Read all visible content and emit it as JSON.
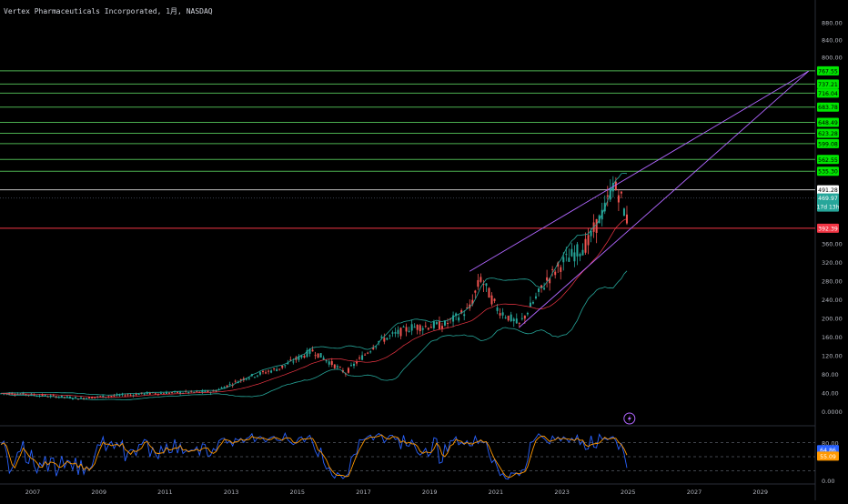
{
  "header": {
    "title": "Vertex Pharmaceuticals Incorporated",
    "interval": "1月",
    "exchange": "NASDAQ"
  },
  "colors": {
    "background": "#000000",
    "candle_up": "#26a69a",
    "candle_down": "#ef5350",
    "target_line": "#4caf50",
    "target_label_bg": "#00e600",
    "support_line": "#f23645",
    "resistance_line": "#c0c0c0",
    "current_price_bg": "#26a69a",
    "channel": "#b066ff",
    "bollinger": "#26a69a",
    "basis": "#f23645",
    "stoch_k": "#2962ff",
    "stoch_d": "#ff9800"
  },
  "icons": {
    "event_marker": "lightning-icon"
  },
  "chart_data": [
    {
      "type": "candlestick",
      "symbol": "Vertex Pharmaceuticals Incorporated",
      "interval": "1月",
      "exchange": "NASDAQ",
      "x_axis": {
        "type": "time",
        "tick_labels": [
          "2007",
          "2009",
          "2011",
          "2013",
          "2015",
          "2017",
          "2019",
          "2021",
          "2023",
          "2025",
          "2027",
          "2029"
        ]
      },
      "y_axis": {
        "scale": "linear",
        "ylim": [
          0,
          900
        ],
        "tick_labels": [
          "880.00",
          "840.00",
          "800.00",
          "360.00",
          "320.00",
          "280.00",
          "240.00",
          "200.00",
          "160.00",
          "120.00",
          "80.00",
          "40.00",
          "0.0000"
        ]
      },
      "trend_path": [
        {
          "date": "2006-06",
          "price": 38
        },
        {
          "date": "2008-06",
          "price": 28
        },
        {
          "date": "2010-06",
          "price": 38
        },
        {
          "date": "2012-06",
          "price": 42
        },
        {
          "date": "2013-06",
          "price": 72
        },
        {
          "date": "2014-06",
          "price": 92
        },
        {
          "date": "2015-06",
          "price": 130
        },
        {
          "date": "2016-06",
          "price": 82
        },
        {
          "date": "2017-06",
          "price": 150
        },
        {
          "date": "2018-06",
          "price": 180
        },
        {
          "date": "2019-06",
          "price": 185
        },
        {
          "date": "2020-03",
          "price": 220
        },
        {
          "date": "2020-07",
          "price": 285
        },
        {
          "date": "2021-01",
          "price": 220
        },
        {
          "date": "2021-09",
          "price": 185
        },
        {
          "date": "2022-07",
          "price": 280
        },
        {
          "date": "2023-01",
          "price": 320
        },
        {
          "date": "2023-10",
          "price": 360
        },
        {
          "date": "2024-04",
          "price": 440
        },
        {
          "date": "2024-07",
          "price": 505
        },
        {
          "date": "2024-10",
          "price": 470
        },
        {
          "date": "2024-12",
          "price": 410
        },
        {
          "date": "2025-01",
          "price": 470
        }
      ],
      "horizontal_levels": [
        {
          "kind": "target",
          "value": 767.55,
          "label": "767.55"
        },
        {
          "kind": "target",
          "value": 737.21,
          "label": "737.21"
        },
        {
          "kind": "target",
          "value": 716.04,
          "label": "716.04"
        },
        {
          "kind": "target",
          "value": 683.78,
          "label": "683.78"
        },
        {
          "kind": "target",
          "value": 648.49,
          "label": "648.49"
        },
        {
          "kind": "target",
          "value": 623.28,
          "label": "623.28"
        },
        {
          "kind": "target",
          "value": 599.08,
          "label": "599.08"
        },
        {
          "kind": "target",
          "value": 562.55,
          "label": "562.55"
        },
        {
          "kind": "target",
          "value": 535.3,
          "label": "535.30"
        },
        {
          "kind": "resistance",
          "value": 491.28,
          "label": "491.28"
        },
        {
          "kind": "current",
          "value": 469.97,
          "label": "469.97",
          "countdown": "17d 13h"
        },
        {
          "kind": "support",
          "value": 392.39,
          "label": "392.39"
        }
      ],
      "channel": {
        "upper_start": {
          "date": "2020-03",
          "price": 300
        },
        "upper_end": {
          "date": "2030-06",
          "price": 767
        },
        "lower_start": {
          "date": "2021-09",
          "price": 180
        },
        "lower_end": {
          "date": "2030-06",
          "price": 767
        }
      },
      "event_marker": {
        "date": "2025-01",
        "icon": "lightning-icon"
      }
    },
    {
      "type": "line",
      "indicator": "stochastic",
      "ylim": [
        0,
        100
      ],
      "tick_labels": [
        "80.00",
        "0.00"
      ],
      "reference_levels": [
        80,
        50,
        20
      ],
      "series": [
        {
          "key": "k",
          "value_label": "64.86"
        },
        {
          "key": "d",
          "value_label": "55.09"
        }
      ]
    }
  ]
}
